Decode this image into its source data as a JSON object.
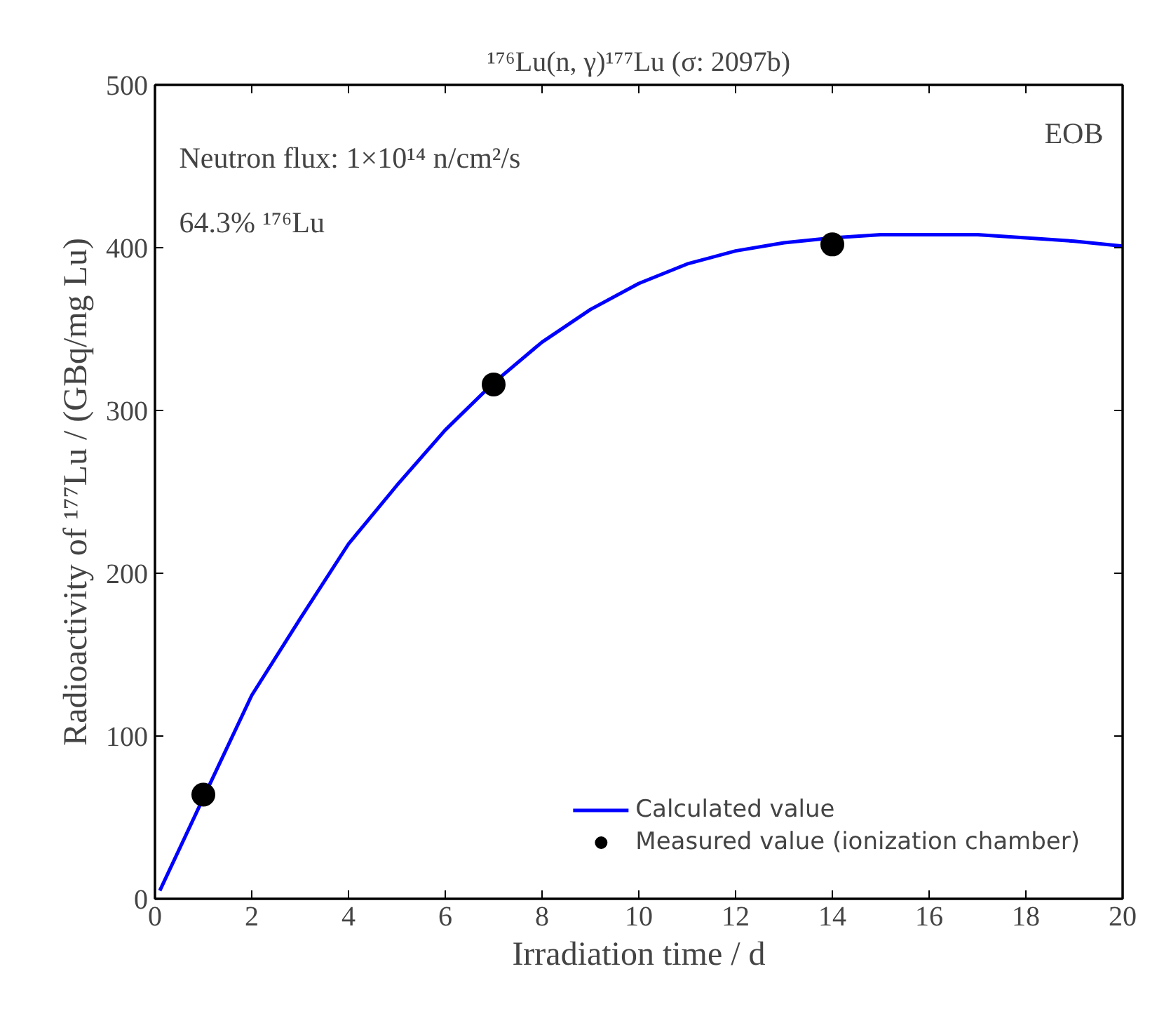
{
  "chart_data": {
    "type": "line",
    "title": "¹⁷⁶Lu(n, γ)¹⁷⁷Lu (σ: 2097b)",
    "xlabel": "Irradiation time / d",
    "ylabel": "Radioactivity of ¹⁷⁷Lu / (GBq/mg Lu)",
    "annotations": [
      "Neutron flux: 1×10¹⁴ n/cm²/s",
      "64.3% ¹⁷⁶Lu",
      "EOB"
    ],
    "xlim": [
      0,
      20
    ],
    "ylim": [
      0,
      500
    ],
    "xticks": [
      0,
      2,
      4,
      6,
      8,
      10,
      12,
      14,
      16,
      18,
      20
    ],
    "yticks": [
      0,
      100,
      200,
      300,
      400,
      500
    ],
    "grid": false,
    "legend": "bottom right",
    "series": [
      {
        "name": "Calculated value",
        "color": "#0000ff",
        "marker": "none",
        "line_style": "solid",
        "x": [
          0.1,
          1,
          2,
          3,
          4,
          5,
          6,
          7,
          8,
          9,
          10,
          11,
          12,
          13,
          14,
          15,
          16,
          17,
          18,
          19,
          20
        ],
        "values": [
          5,
          62,
          125,
          172,
          218,
          254,
          288,
          317,
          342,
          362,
          378,
          390,
          398,
          403,
          406,
          408,
          408,
          408,
          406,
          404,
          401
        ]
      },
      {
        "name": "Measured value (ionization chamber)",
        "type": "scatter",
        "color": "#000000",
        "marker": "circle",
        "x": [
          1,
          7,
          14
        ],
        "values": [
          64,
          316,
          402
        ]
      }
    ]
  }
}
